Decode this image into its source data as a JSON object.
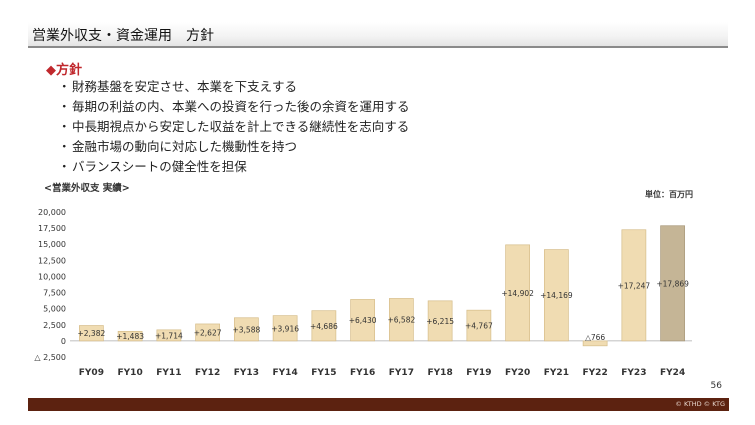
{
  "header": {
    "title": "営業外収支・資金運用　方針"
  },
  "policy": {
    "heading": "◆方針",
    "bullet": "・",
    "items": [
      "財務基盤を安定させ、本業を下支えする",
      "毎期の利益の内、本業への投資を行った後の余資を運用する",
      "中長期視点から安定した収益を計上できる継続性を志向する",
      "金融市場の動向に対応した機動性を持つ",
      "バランスシートの健全性を担保"
    ]
  },
  "chart_title": "<営業外収支 実績>",
  "unit_label": "単位：百万円",
  "chart_data": {
    "type": "bar",
    "title": "<営業外収支 実績>",
    "unit": "単位：百万円",
    "categories": [
      "FY09",
      "FY10",
      "FY11",
      "FY12",
      "FY13",
      "FY14",
      "FY15",
      "FY16",
      "FY17",
      "FY18",
      "FY19",
      "FY20",
      "FY21",
      "FY22",
      "FY23",
      "FY24"
    ],
    "values": [
      2382,
      1483,
      1714,
      2627,
      3588,
      3916,
      4686,
      6430,
      6582,
      6215,
      4767,
      14902,
      14169,
      -766,
      17247,
      17869
    ],
    "data_labels": [
      "+2,382",
      "+1,483",
      "+1,714",
      "+2,627",
      "+3,588",
      "+3,916",
      "+4,686",
      "+6,430",
      "+6,582",
      "+6,215",
      "+4,767",
      "+14,902",
      "+14,169",
      "△766",
      "+17,247",
      "+17,869"
    ],
    "y_ticks": [
      20000,
      17500,
      15000,
      12500,
      10000,
      7500,
      5000,
      2500,
      0,
      -2500
    ],
    "y_tick_labels": [
      "20,000",
      "17,500",
      "15,000",
      "12,500",
      "10,000",
      "7,500",
      "5,000",
      "2,500",
      "0",
      "△ 2,500"
    ],
    "ylim": [
      -2500,
      20000
    ],
    "grid": false,
    "bar_color": "#f0dcb2",
    "bar_stroke": "#d6bd8a",
    "highlight_index": 15,
    "highlight_color": "#c5b596",
    "highlight_stroke": "#a8987a"
  },
  "page_number": "56",
  "copyright": "© KTHD © KTG"
}
